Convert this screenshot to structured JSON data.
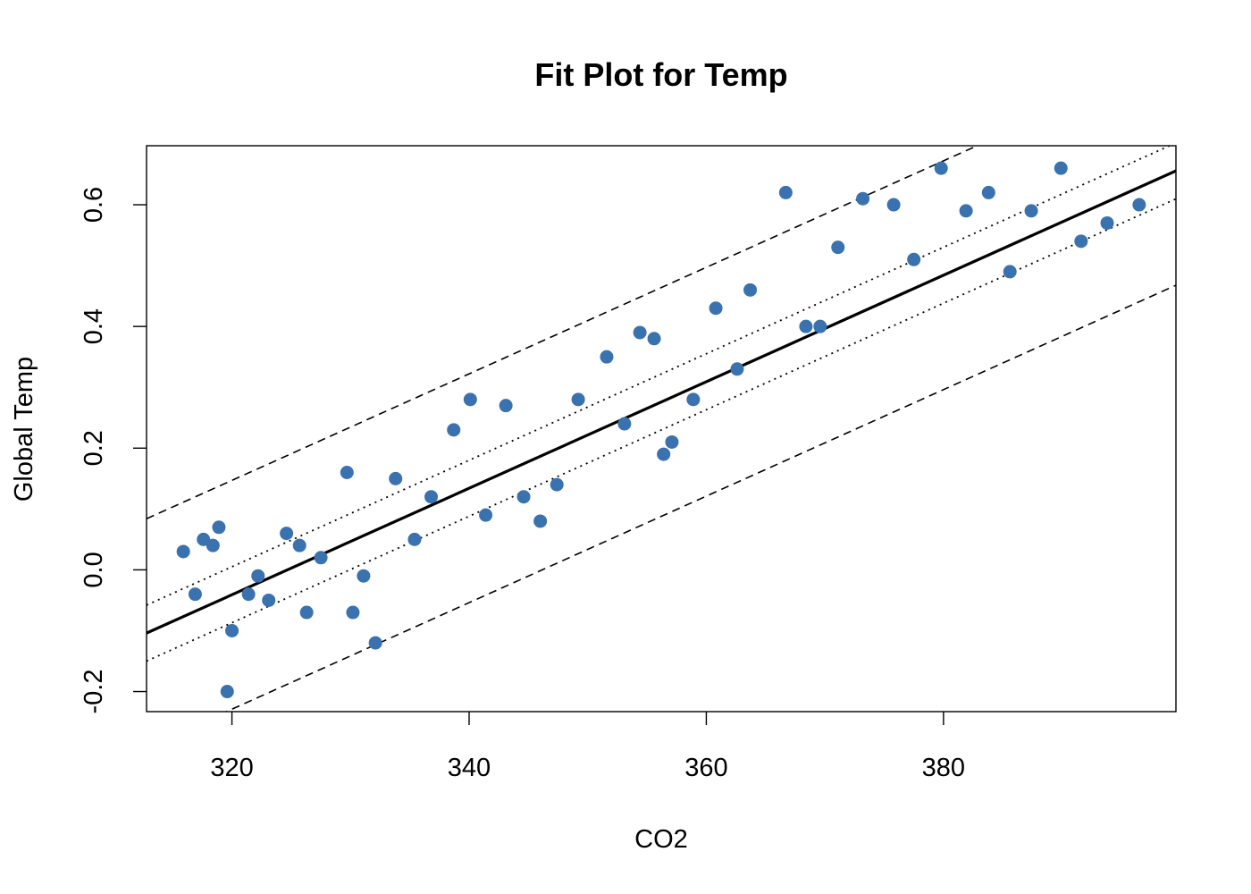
{
  "chart_data": {
    "type": "scatter",
    "title": "Fit Plot for Temp",
    "xlabel": "CO2",
    "ylabel": "Global Temp",
    "xlim": [
      312.8,
      399.6
    ],
    "ylim": [
      -0.233,
      0.697
    ],
    "x_ticks": [
      {
        "value": 320,
        "label": "320"
      },
      {
        "value": 340,
        "label": "340"
      },
      {
        "value": 360,
        "label": "360"
      },
      {
        "value": 380,
        "label": "380"
      }
    ],
    "y_ticks": [
      {
        "value": -0.2,
        "label": "-0.2"
      },
      {
        "value": 0.0,
        "label": "0.0"
      },
      {
        "value": 0.2,
        "label": "0.2"
      },
      {
        "value": 0.4,
        "label": "0.4"
      },
      {
        "value": 0.6,
        "label": "0.6"
      }
    ],
    "grid": false,
    "point_color": "#3a72b0",
    "fit": {
      "intercept": -2.8416,
      "slope": 0.008752,
      "color": "#000000"
    },
    "confidence_band_halfwidth": 0.046,
    "prediction_band_halfwidth": 0.188,
    "points": [
      {
        "x": 315.9,
        "y": 0.03
      },
      {
        "x": 316.9,
        "y": -0.04
      },
      {
        "x": 317.6,
        "y": 0.05
      },
      {
        "x": 318.4,
        "y": 0.04
      },
      {
        "x": 318.9,
        "y": 0.07
      },
      {
        "x": 319.6,
        "y": -0.2
      },
      {
        "x": 320.0,
        "y": -0.1
      },
      {
        "x": 321.4,
        "y": -0.04
      },
      {
        "x": 322.2,
        "y": -0.01
      },
      {
        "x": 323.1,
        "y": -0.05
      },
      {
        "x": 324.6,
        "y": 0.06
      },
      {
        "x": 325.7,
        "y": 0.04
      },
      {
        "x": 326.3,
        "y": -0.07
      },
      {
        "x": 327.5,
        "y": 0.02
      },
      {
        "x": 329.7,
        "y": 0.16
      },
      {
        "x": 330.2,
        "y": -0.07
      },
      {
        "x": 331.1,
        "y": -0.01
      },
      {
        "x": 332.1,
        "y": -0.12
      },
      {
        "x": 333.8,
        "y": 0.15
      },
      {
        "x": 335.4,
        "y": 0.05
      },
      {
        "x": 336.8,
        "y": 0.12
      },
      {
        "x": 338.7,
        "y": 0.23
      },
      {
        "x": 340.1,
        "y": 0.28
      },
      {
        "x": 341.4,
        "y": 0.09
      },
      {
        "x": 343.1,
        "y": 0.27
      },
      {
        "x": 344.6,
        "y": 0.12
      },
      {
        "x": 346.0,
        "y": 0.08
      },
      {
        "x": 347.4,
        "y": 0.14
      },
      {
        "x": 349.2,
        "y": 0.28
      },
      {
        "x": 351.6,
        "y": 0.35
      },
      {
        "x": 353.1,
        "y": 0.24
      },
      {
        "x": 354.4,
        "y": 0.39
      },
      {
        "x": 355.6,
        "y": 0.38
      },
      {
        "x": 356.4,
        "y": 0.19
      },
      {
        "x": 357.1,
        "y": 0.21
      },
      {
        "x": 358.9,
        "y": 0.28
      },
      {
        "x": 360.8,
        "y": 0.43
      },
      {
        "x": 362.6,
        "y": 0.33
      },
      {
        "x": 363.7,
        "y": 0.46
      },
      {
        "x": 366.7,
        "y": 0.62
      },
      {
        "x": 368.4,
        "y": 0.4
      },
      {
        "x": 369.6,
        "y": 0.4
      },
      {
        "x": 371.1,
        "y": 0.53
      },
      {
        "x": 373.2,
        "y": 0.61
      },
      {
        "x": 375.8,
        "y": 0.6
      },
      {
        "x": 377.5,
        "y": 0.51
      },
      {
        "x": 379.8,
        "y": 0.66
      },
      {
        "x": 381.9,
        "y": 0.59
      },
      {
        "x": 383.8,
        "y": 0.62
      },
      {
        "x": 385.6,
        "y": 0.49
      },
      {
        "x": 387.4,
        "y": 0.59
      },
      {
        "x": 389.9,
        "y": 0.66
      },
      {
        "x": 391.6,
        "y": 0.54
      },
      {
        "x": 393.8,
        "y": 0.57
      },
      {
        "x": 396.5,
        "y": 0.6
      }
    ]
  }
}
